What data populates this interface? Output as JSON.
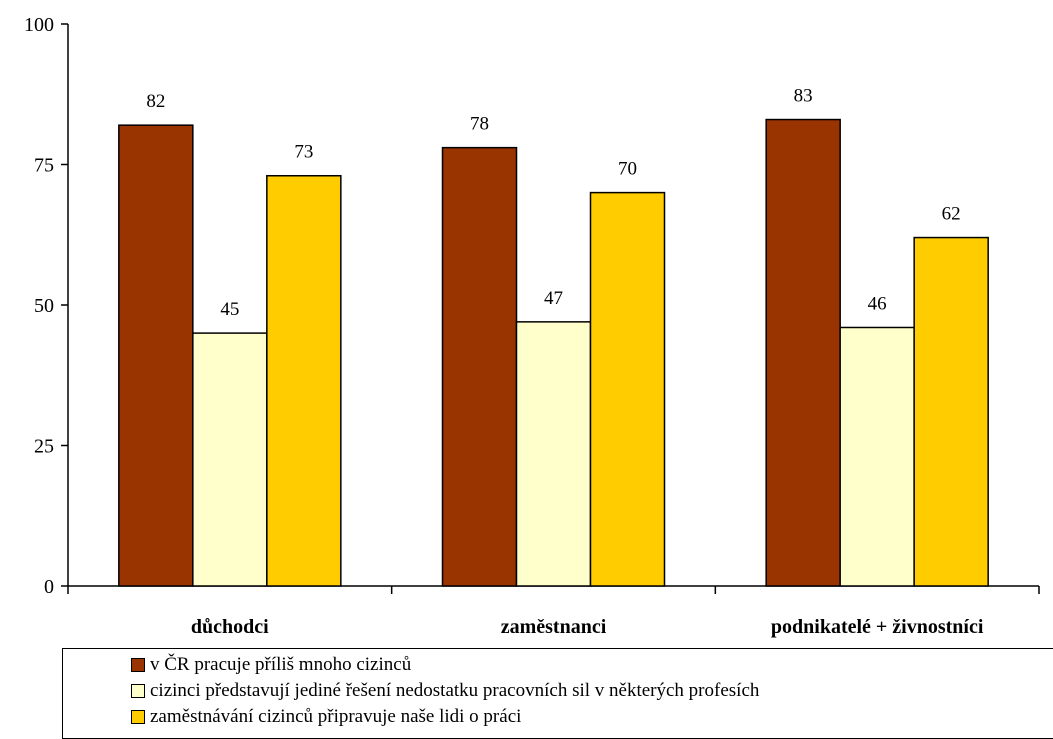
{
  "chart_data": {
    "type": "bar",
    "categories": [
      "důchodci",
      "zaměstnanci",
      "podnikatelé + živnostníci"
    ],
    "series": [
      {
        "name": "v ČR pracuje příliš mnoho cizinců",
        "color": "#993300",
        "values": [
          82,
          78,
          83
        ]
      },
      {
        "name": "cizinci představují jediné řešení nedostatku pracovních sil v některých profesích",
        "color": "#FFFFCC",
        "values": [
          45,
          47,
          46
        ]
      },
      {
        "name": "zaměstnávání cizinců připravuje naše lidi o práci",
        "color": "#FFCC00",
        "values": [
          73,
          70,
          62
        ]
      }
    ],
    "ylim": [
      0,
      100
    ],
    "yticks": [
      "0",
      "25",
      "50",
      "75",
      "100"
    ],
    "grid": false,
    "legend_position": "bottom"
  }
}
